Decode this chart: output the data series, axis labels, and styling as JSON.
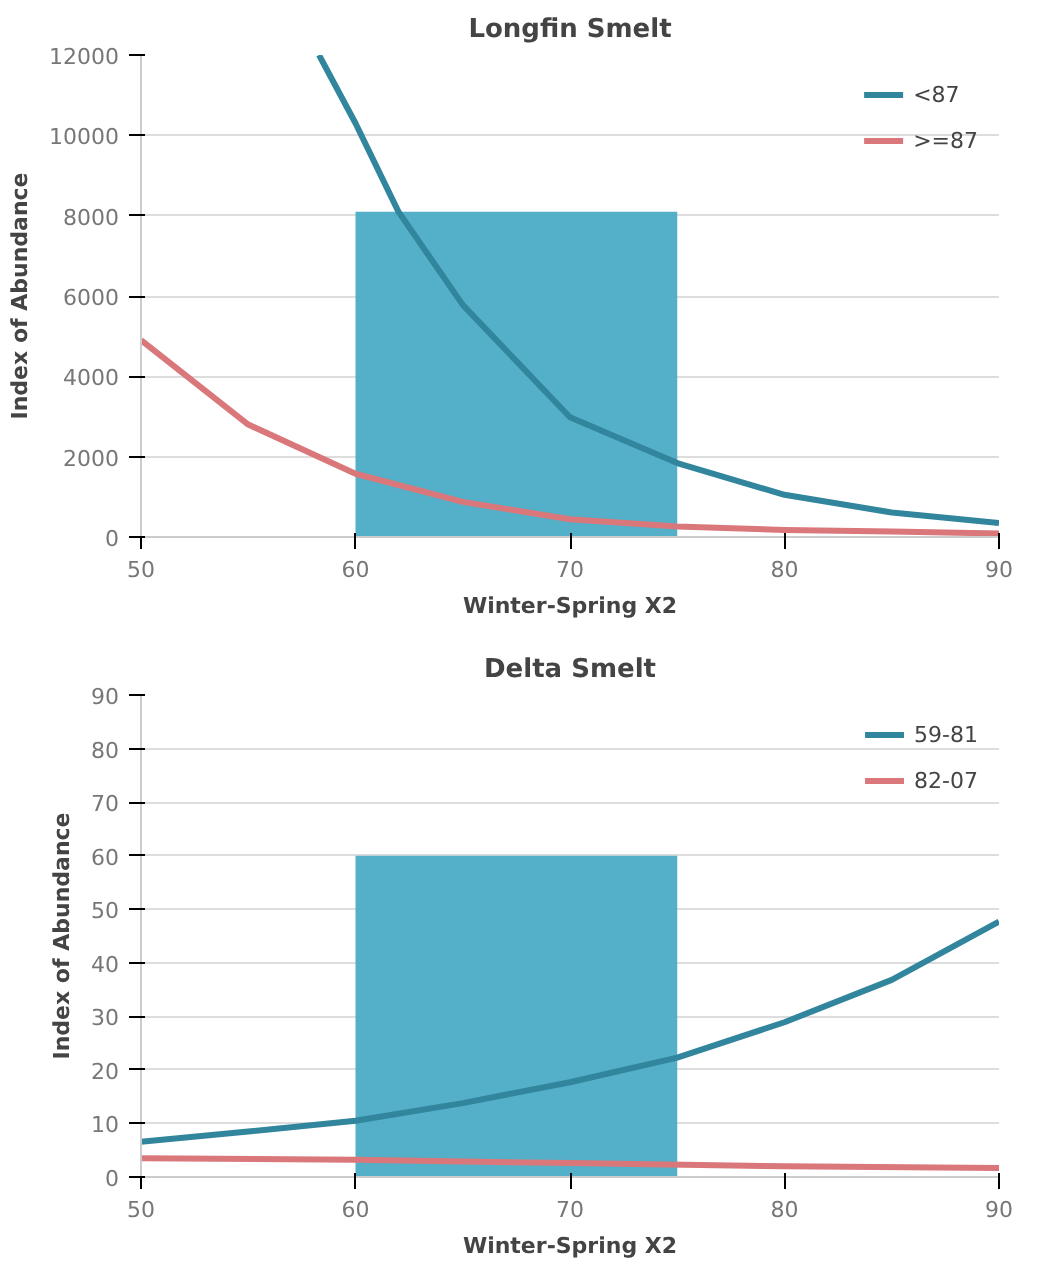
{
  "chart_data": [
    {
      "type": "line",
      "title": "Longfin Smelt",
      "xlabel": "Winter-Spring X2",
      "ylabel": "Index of Abundance",
      "xlim": [
        50,
        90
      ],
      "xticks": [
        50,
        60,
        70,
        80,
        90
      ],
      "ylim": [
        0,
        12000
      ],
      "yticks": [
        0,
        2000,
        4000,
        6000,
        8000,
        10000,
        12000
      ],
      "grid": "y",
      "legend": "top right",
      "series": [
        {
          "type": "area",
          "color": "#4bacc6",
          "x": [
            60,
            75
          ],
          "values": [
            8100,
            8100
          ]
        },
        {
          "name": "<87",
          "color": "#31859c",
          "x": [
            58.3,
            60,
            62,
            65,
            70,
            75,
            80,
            85,
            90
          ],
          "values": [
            12000,
            10300,
            8100,
            5780,
            2980,
            1840,
            1050,
            610,
            350
          ]
        },
        {
          "name": ">=87",
          "color": "#d9777a",
          "x": [
            50,
            55,
            60,
            65,
            70,
            75,
            80,
            85,
            90
          ],
          "values": [
            4900,
            2800,
            1575,
            875,
            440,
            260,
            175,
            140,
            90
          ]
        }
      ]
    },
    {
      "type": "line",
      "title": "Delta Smelt",
      "xlabel": "Winter-Spring X2",
      "ylabel": "Index of Abundance",
      "xlim": [
        50,
        90
      ],
      "xticks": [
        50,
        60,
        70,
        80,
        90
      ],
      "ylim": [
        0,
        90
      ],
      "yticks": [
        0,
        10,
        20,
        30,
        40,
        50,
        60,
        70,
        80,
        90
      ],
      "grid": "y",
      "legend": "top right",
      "series": [
        {
          "type": "area",
          "color": "#4bacc6",
          "x": [
            60,
            75
          ],
          "values": [
            60,
            60
          ]
        },
        {
          "name": "59-81",
          "color": "#31859c",
          "x": [
            50,
            55,
            60,
            65,
            70,
            75,
            80,
            85,
            90
          ],
          "values": [
            6.6,
            8.5,
            10.5,
            13.8,
            17.7,
            22.3,
            28.9,
            36.8,
            47.7
          ]
        },
        {
          "name": "82-07",
          "color": "#d9777a",
          "x": [
            50,
            60,
            70,
            80,
            90
          ],
          "values": [
            3.5,
            3.2,
            2.6,
            2.0,
            1.7
          ]
        }
      ]
    }
  ]
}
